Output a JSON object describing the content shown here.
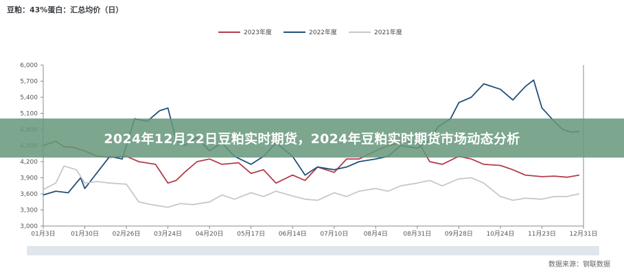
{
  "chart_title": "豆粕：43%蛋白：汇总均价（日）",
  "banner_text": "2024年12月22日豆粕实时期货，2024年豆粕实时期货市场动态分析",
  "source_text": "数据来源：钢联数据",
  "chart_data": {
    "type": "line",
    "title": "豆粕：43%蛋白：汇总均价（日）",
    "xlabel": "",
    "ylabel": "",
    "ylim": [
      3000,
      6000
    ],
    "yticks": [
      "6,000",
      "5,700",
      "5,400",
      "5,100",
      "4,800",
      "4,500",
      "4,200",
      "3,900",
      "3,600",
      "3,300",
      "3,000"
    ],
    "ytick_values": [
      6000,
      5700,
      5400,
      5100,
      4800,
      4500,
      4200,
      3900,
      3600,
      3300,
      3000
    ],
    "xtick_labels": [
      "01月3日",
      "01月30日",
      "02月26日",
      "03月24日",
      "04月20日",
      "05月17日",
      "06月14日",
      "07月10日",
      "08月4日",
      "08月31日",
      "09月28日",
      "10月24日",
      "11月23日",
      "12月31日"
    ],
    "legend_position": "top-center",
    "grid": false,
    "series": [
      {
        "name": "2023年度",
        "color": "#b23a48",
        "x": [
          0,
          0.3,
          0.5,
          0.7,
          1,
          1.3,
          1.6,
          2,
          2.3,
          2.7,
          3,
          3.2,
          3.4,
          3.7,
          4,
          4.3,
          4.7,
          5,
          5.3,
          5.6,
          6,
          6.3,
          6.6,
          7,
          7.3,
          7.6,
          8,
          8.3,
          8.6,
          9,
          9.3,
          9.6,
          10,
          10.3,
          10.6,
          11,
          11.3,
          11.6,
          12,
          12.3,
          12.6,
          12.9
        ],
        "values": [
          4500,
          4580,
          4480,
          4470,
          4400,
          4300,
          4280,
          4300,
          4200,
          4150,
          3800,
          3850,
          4000,
          4200,
          4250,
          4150,
          4180,
          3980,
          4050,
          3800,
          3950,
          3850,
          4100,
          4000,
          4250,
          4250,
          4400,
          4500,
          4550,
          4600,
          4200,
          4150,
          4300,
          4250,
          4150,
          4130,
          4050,
          3950,
          3920,
          3930,
          3910,
          3950
        ],
        "values_desc": "approximate daily averages read from gridlines"
      },
      {
        "name": "2022年度",
        "color": "#1f4e79",
        "x": [
          0,
          0.3,
          0.6,
          0.9,
          1,
          1.3,
          1.6,
          1.9,
          2.2,
          2.5,
          2.8,
          3,
          3.2,
          3.4,
          3.7,
          4,
          4.3,
          4.6,
          5,
          5.3,
          5.6,
          6,
          6.3,
          6.6,
          7,
          7.3,
          7.6,
          8,
          8.3,
          8.6,
          9,
          9.3,
          9.5,
          9.8,
          10,
          10.3,
          10.6,
          11,
          11.3,
          11.6,
          11.8,
          12,
          12.3,
          12.5,
          12.7,
          12.9
        ],
        "values": [
          3580,
          3650,
          3620,
          3900,
          3700,
          4000,
          4300,
          4250,
          5000,
          4950,
          5150,
          5200,
          4600,
          4500,
          4650,
          4400,
          4550,
          4300,
          4150,
          4300,
          4550,
          4300,
          3950,
          4100,
          4050,
          4100,
          4200,
          4250,
          4300,
          4500,
          4450,
          4600,
          4850,
          5000,
          5300,
          5400,
          5650,
          5550,
          5350,
          5600,
          5720,
          5200,
          4950,
          4800,
          4750,
          4760
        ],
        "values_desc": "approximate daily averages read from gridlines"
      },
      {
        "name": "2021年度",
        "color": "#c7c7c7",
        "x": [
          0,
          0.3,
          0.5,
          0.8,
          1,
          1.3,
          1.6,
          2,
          2.3,
          2.6,
          3,
          3.3,
          3.6,
          4,
          4.3,
          4.6,
          5,
          5.3,
          5.6,
          6,
          6.3,
          6.6,
          7,
          7.3,
          7.6,
          8,
          8.3,
          8.6,
          9,
          9.3,
          9.6,
          10,
          10.3,
          10.6,
          11,
          11.3,
          11.6,
          12,
          12.3,
          12.6,
          12.9
        ],
        "values": [
          3680,
          3800,
          4120,
          4050,
          3800,
          3830,
          3800,
          3780,
          3450,
          3400,
          3350,
          3420,
          3400,
          3450,
          3580,
          3500,
          3620,
          3550,
          3650,
          3560,
          3500,
          3480,
          3620,
          3550,
          3650,
          3700,
          3650,
          3750,
          3800,
          3850,
          3750,
          3880,
          3900,
          3800,
          3550,
          3480,
          3520,
          3500,
          3550,
          3550,
          3600
        ],
        "values_desc": "approximate daily averages read from gridlines"
      }
    ]
  }
}
